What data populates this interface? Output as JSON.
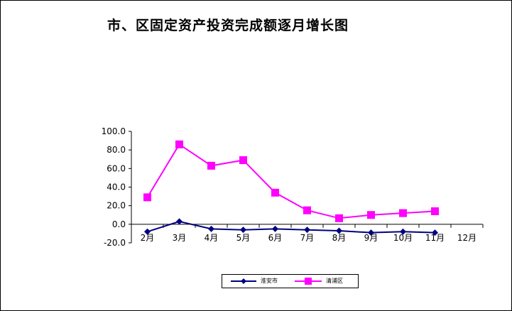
{
  "chart_data": {
    "type": "line",
    "title": "市、区固定资产投资完成额逐月增长图",
    "categories": [
      "2月",
      "3月",
      "4月",
      "5月",
      "6月",
      "7月",
      "8月",
      "9月",
      "10月",
      "11月",
      "12月"
    ],
    "ylim": [
      -20,
      100
    ],
    "yticks": [
      "100.0",
      "80.0",
      "60.0",
      "40.0",
      "20.0",
      "0.0",
      "-20.0"
    ],
    "ytick_values": [
      100,
      80,
      60,
      40,
      20,
      0,
      -20
    ],
    "grid": false,
    "legend_position": "bottom",
    "series": [
      {
        "name": "淮安市",
        "color": "#000080",
        "marker": "diamond",
        "values": [
          -8.0,
          3.0,
          -5.0,
          -6.0,
          -5.0,
          -6.0,
          -7.0,
          -9.0,
          -8.0,
          -9.0,
          null
        ]
      },
      {
        "name": "清浦区",
        "color": "#FF00FF",
        "marker": "square",
        "values": [
          29.0,
          86.0,
          63.0,
          69.0,
          34.0,
          15.0,
          6.5,
          10.0,
          12.0,
          14.0,
          null
        ]
      }
    ]
  }
}
